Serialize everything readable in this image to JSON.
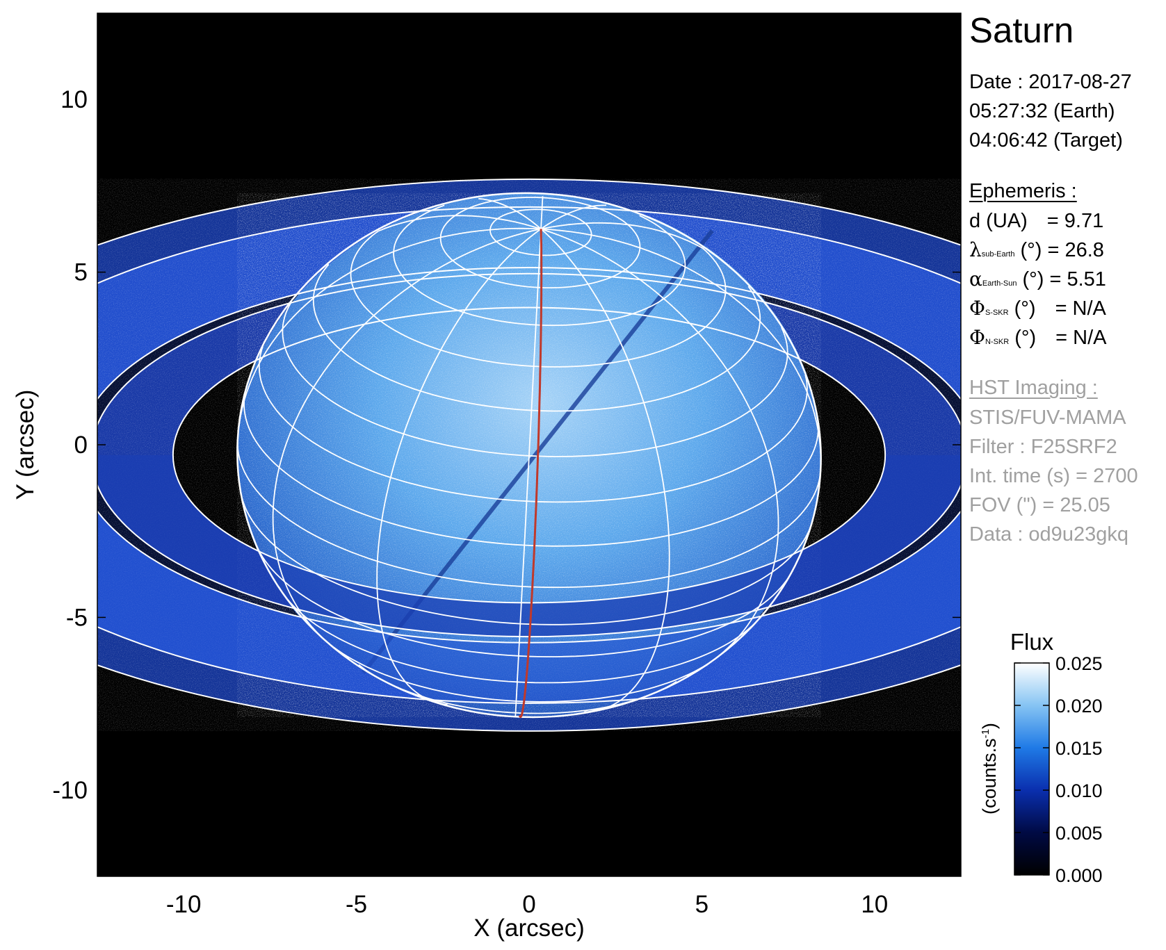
{
  "title": "Saturn",
  "date": {
    "line1": "Date : 2017-08-27",
    "line2": "05:27:32 (Earth)",
    "line3": "04:06:42 (Target)"
  },
  "ephemeris": {
    "heading": "Ephemeris :",
    "rows": [
      {
        "symbol": "d (UA)",
        "subscript": "",
        "unit": "",
        "value": "= 9.71"
      },
      {
        "symbol": "λ",
        "subscript": "sub-Earth",
        "unit": " (°)",
        "value": "= 26.8"
      },
      {
        "symbol": "α",
        "subscript": "Earth-Sun",
        "unit": " (°)",
        "value": "= 5.51"
      },
      {
        "symbol": "Φ",
        "subscript": "S-SKR",
        "unit": " (°)",
        "value": "= N/A"
      },
      {
        "symbol": "Φ",
        "subscript": "N-SKR",
        "unit": " (°)",
        "value": "= N/A"
      }
    ]
  },
  "imaging": {
    "heading": "HST Imaging :",
    "instrument": "STIS/FUV-MAMA",
    "filter": "Filter : F25SRF2",
    "int_time": "Int. time (s) = 2700",
    "fov": "FOV (\") = 25.05",
    "data": "Data : od9u23gkq"
  },
  "axes": {
    "xlabel": "X (arcsec)",
    "ylabel": "Y (arcsec)",
    "xlim": [
      -12.5,
      12.5
    ],
    "ylim": [
      -12.5,
      12.5
    ],
    "xticks": [
      "-10",
      "-5",
      "0",
      "5",
      "10"
    ],
    "yticks": [
      "-10",
      "-5",
      "0",
      "5",
      "10"
    ]
  },
  "colorbar": {
    "title": "Flux",
    "unit_label": "(counts.s-1)",
    "ticks": [
      "0.000",
      "0.005",
      "0.010",
      "0.015",
      "0.020",
      "0.025"
    ],
    "range": [
      0.0,
      0.025
    ],
    "colors": [
      "#000000",
      "#000a44",
      "#0a2fae",
      "#1f7ae6",
      "#86c4f3",
      "#ffffff"
    ]
  },
  "colors": {
    "background": "#000000",
    "planet": "#2f74d4",
    "rings": "#1d46c7",
    "grid": "#ffffff",
    "meridian": "#c0392b"
  },
  "planet": {
    "center": [
      0.0,
      -0.3
    ],
    "equatorial_radius": 8.45,
    "polar_radius": 7.35,
    "sub_earth_latitude_deg": 26.8,
    "pole_tilt_deg": -3.0
  }
}
